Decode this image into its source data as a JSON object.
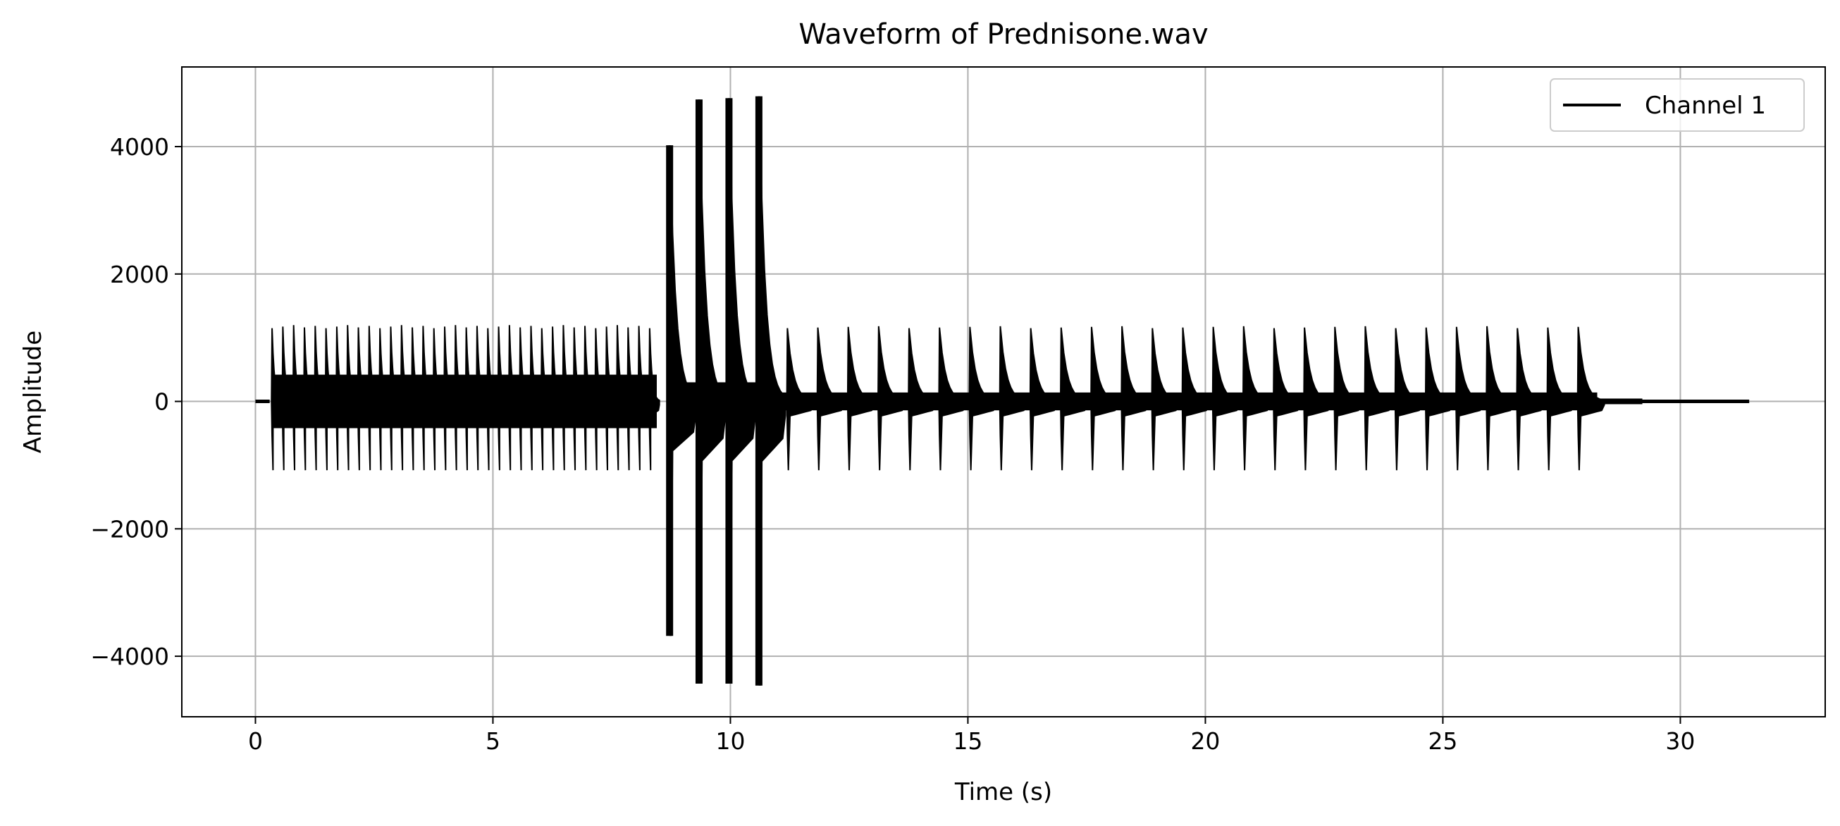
{
  "chart_data": {
    "type": "line",
    "title": "Waveform of Prednisone.wav",
    "xlabel": "Time (s)",
    "ylabel": "Amplitude",
    "xlim": [
      -1.55,
      33.05
    ],
    "ylim": [
      -4950,
      5250
    ],
    "xticks": [
      0,
      5,
      10,
      15,
      20,
      25,
      30
    ],
    "xtick_labels": [
      "0",
      "5",
      "10",
      "15",
      "20",
      "25",
      "30"
    ],
    "yticks": [
      4000,
      2000,
      0,
      -2000,
      -4000
    ],
    "ytick_labels": [
      "4000",
      "2000",
      "0",
      "−2000",
      "−4000"
    ],
    "grid": true,
    "legend": {
      "position": "top-right",
      "entries": [
        "Channel 1"
      ]
    },
    "series": [
      {
        "name": "Channel 1",
        "color": "#000000",
        "x_start": 0.0,
        "x_end": 31.45,
        "baseline": 0,
        "lead_in_end": 0.3,
        "tail_decay_end": 29.2,
        "bursts_early": {
          "start": 0.35,
          "end": 8.3,
          "count": 36,
          "peak_positive": 1150,
          "peak_negative": -1080,
          "typical_positive_range": [
            1100,
            1200
          ]
        },
        "bursts_loud": [
          {
            "t": 8.72,
            "max": 4020,
            "min": -3680
          },
          {
            "t": 9.34,
            "max": 4740,
            "min": -4430
          },
          {
            "t": 9.97,
            "max": 4760,
            "min": -4430
          },
          {
            "t": 10.6,
            "max": 4790,
            "min": -4460
          }
        ],
        "bursts_late": {
          "start": 11.2,
          "end": 27.85,
          "count": 27,
          "peak_positive": 1150,
          "peak_negative": -1080
        }
      }
    ]
  }
}
